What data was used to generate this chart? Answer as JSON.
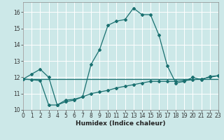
{
  "xlabel": "Humidex (Indice chaleur)",
  "bg_color": "#cce8e8",
  "grid_color": "#ffffff",
  "line_color": "#1a7070",
  "xlim": [
    0,
    23
  ],
  "ylim": [
    10,
    16.6
  ],
  "yticks": [
    10,
    11,
    12,
    13,
    14,
    15,
    16
  ],
  "xticks": [
    0,
    1,
    2,
    3,
    4,
    5,
    6,
    7,
    8,
    9,
    10,
    11,
    12,
    13,
    14,
    15,
    16,
    17,
    18,
    19,
    20,
    21,
    22,
    23
  ],
  "line1_x": [
    0,
    1,
    2,
    3,
    4,
    5,
    6,
    7,
    8,
    9,
    10,
    11,
    12,
    13,
    14,
    15,
    16,
    17,
    18,
    19,
    20,
    21,
    22,
    23
  ],
  "line1_y": [
    11.9,
    12.2,
    12.5,
    12.0,
    10.3,
    10.5,
    10.6,
    10.8,
    12.8,
    13.7,
    15.2,
    15.45,
    15.55,
    16.25,
    15.85,
    15.85,
    14.6,
    12.7,
    11.65,
    11.75,
    12.0,
    11.85,
    12.05,
    12.1
  ],
  "line2_x": [
    0,
    23
  ],
  "line2_y": [
    11.9,
    11.9
  ],
  "line3_x": [
    0,
    1,
    2,
    3,
    4,
    5,
    6,
    7,
    8,
    9,
    10,
    11,
    12,
    13,
    14,
    15,
    16,
    17,
    18,
    19,
    20,
    21,
    22,
    23
  ],
  "line3_y": [
    11.9,
    11.85,
    11.8,
    10.3,
    10.3,
    10.6,
    10.65,
    10.8,
    11.0,
    11.1,
    11.2,
    11.35,
    11.45,
    11.55,
    11.65,
    11.75,
    11.75,
    11.75,
    11.75,
    11.8,
    11.85,
    11.9,
    12.0,
    12.1
  ],
  "marker_size": 2.0,
  "line_width": 0.9,
  "tick_fontsize": 5.5,
  "xlabel_fontsize": 6.5
}
